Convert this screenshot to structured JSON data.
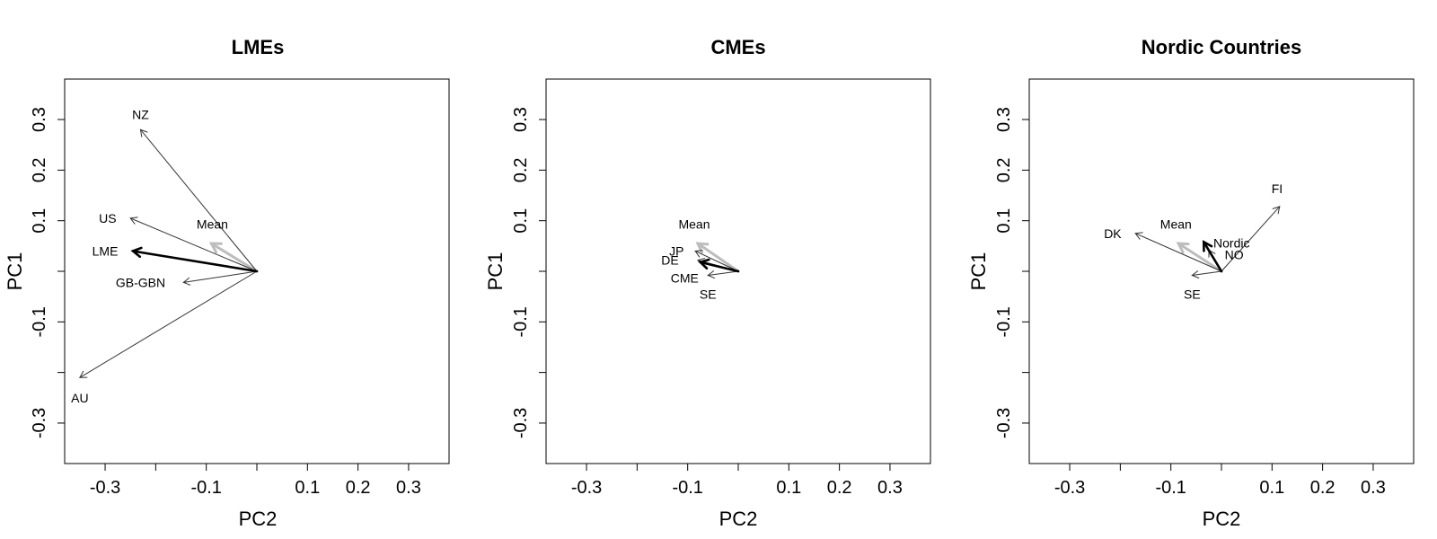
{
  "chart_data": [
    {
      "type": "biplot-arrows",
      "title": "LMEs",
      "xlabel": "PC2",
      "ylabel": "PC1",
      "xlim": [
        -0.38,
        0.38
      ],
      "ylim": [
        -0.38,
        0.38
      ],
      "xticks": [
        -0.3,
        -0.2,
        -0.1,
        0,
        0.1,
        0.2,
        0.3
      ],
      "yticks": [
        -0.3,
        -0.2,
        -0.1,
        0,
        0.1,
        0.2,
        0.3
      ],
      "xtick_labels": [
        "-0.3",
        "",
        "-0.1",
        "",
        "0.1",
        "0.2",
        "0.3"
      ],
      "ytick_labels": [
        "-0.3",
        "",
        "-0.1",
        "",
        "0.1",
        "0.2",
        "0.3"
      ],
      "origin": [
        0,
        0
      ],
      "arrows": [
        {
          "label": "NZ",
          "x": -0.23,
          "y": 0.28,
          "style": "thin",
          "label_x": -0.23,
          "label_y": 0.31
        },
        {
          "label": "US",
          "x": -0.25,
          "y": 0.105,
          "style": "thin",
          "label_x": -0.295,
          "label_y": 0.105
        },
        {
          "label": "Mean",
          "x": -0.09,
          "y": 0.055,
          "style": "gray",
          "label_x": -0.088,
          "label_y": 0.093
        },
        {
          "label": "LME",
          "x": -0.245,
          "y": 0.04,
          "style": "bold",
          "label_x": -0.3,
          "label_y": 0.04
        },
        {
          "label": "GB-GBN",
          "x": -0.145,
          "y": -0.022,
          "style": "thin",
          "label_x": -0.23,
          "label_y": -0.022
        },
        {
          "label": "AU",
          "x": -0.35,
          "y": -0.21,
          "style": "thin",
          "label_x": -0.35,
          "label_y": -0.25
        }
      ]
    },
    {
      "type": "biplot-arrows",
      "title": "CMEs",
      "xlabel": "PC2",
      "ylabel": "PC1",
      "xlim": [
        -0.38,
        0.38
      ],
      "ylim": [
        -0.38,
        0.38
      ],
      "xticks": [
        -0.3,
        -0.2,
        -0.1,
        0,
        0.1,
        0.2,
        0.3
      ],
      "yticks": [
        -0.3,
        -0.2,
        -0.1,
        0,
        0.1,
        0.2,
        0.3
      ],
      "xtick_labels": [
        "-0.3",
        "",
        "-0.1",
        "",
        "0.1",
        "0.2",
        "0.3"
      ],
      "ytick_labels": [
        "-0.3",
        "",
        "-0.1",
        "",
        "0.1",
        "0.2",
        "0.3"
      ],
      "origin": [
        0,
        0
      ],
      "arrows": [
        {
          "label": "Mean",
          "x": -0.08,
          "y": 0.055,
          "style": "gray",
          "label_x": -0.087,
          "label_y": 0.093
        },
        {
          "label": "JP",
          "x": -0.085,
          "y": 0.04,
          "style": "thin",
          "label_x": -0.122,
          "label_y": 0.04
        },
        {
          "label": "DE",
          "x": -0.08,
          "y": 0.022,
          "style": "thin",
          "label_x": -0.135,
          "label_y": 0.022
        },
        {
          "label": "CME",
          "x": -0.075,
          "y": 0.018,
          "style": "bold",
          "label_x": -0.106,
          "label_y": -0.013
        },
        {
          "label": "SE",
          "x": -0.06,
          "y": -0.008,
          "style": "thin",
          "label_x": -0.06,
          "label_y": -0.045
        }
      ]
    },
    {
      "type": "biplot-arrows",
      "title": "Nordic Countries",
      "xlabel": "PC2",
      "ylabel": "PC1",
      "xlim": [
        -0.38,
        0.38
      ],
      "ylim": [
        -0.38,
        0.38
      ],
      "xticks": [
        -0.3,
        -0.2,
        -0.1,
        0,
        0.1,
        0.2,
        0.3
      ],
      "yticks": [
        -0.3,
        -0.2,
        -0.1,
        0,
        0.1,
        0.2,
        0.3
      ],
      "xtick_labels": [
        "-0.3",
        "",
        "-0.1",
        "",
        "0.1",
        "0.2",
        "0.3"
      ],
      "ytick_labels": [
        "-0.3",
        "",
        "-0.1",
        "",
        "0.1",
        "0.2",
        "0.3"
      ],
      "origin": [
        0,
        0
      ],
      "arrows": [
        {
          "label": "FI",
          "x": 0.115,
          "y": 0.128,
          "style": "thin",
          "label_x": 0.11,
          "label_y": 0.163
        },
        {
          "label": "DK",
          "x": -0.17,
          "y": 0.075,
          "style": "thin",
          "label_x": -0.215,
          "label_y": 0.075
        },
        {
          "label": "Mean",
          "x": -0.085,
          "y": 0.055,
          "style": "gray",
          "label_x": -0.09,
          "label_y": 0.093
        },
        {
          "label": "Nordic",
          "x": -0.035,
          "y": 0.058,
          "style": "bold",
          "label_x": 0.02,
          "label_y": 0.056
        },
        {
          "label": "NO",
          "x": -0.025,
          "y": 0.042,
          "style": "thin",
          "label_x": 0.025,
          "label_y": 0.033
        },
        {
          "label": "SE",
          "x": -0.058,
          "y": -0.008,
          "style": "thin",
          "label_x": -0.058,
          "label_y": -0.045
        }
      ]
    }
  ]
}
